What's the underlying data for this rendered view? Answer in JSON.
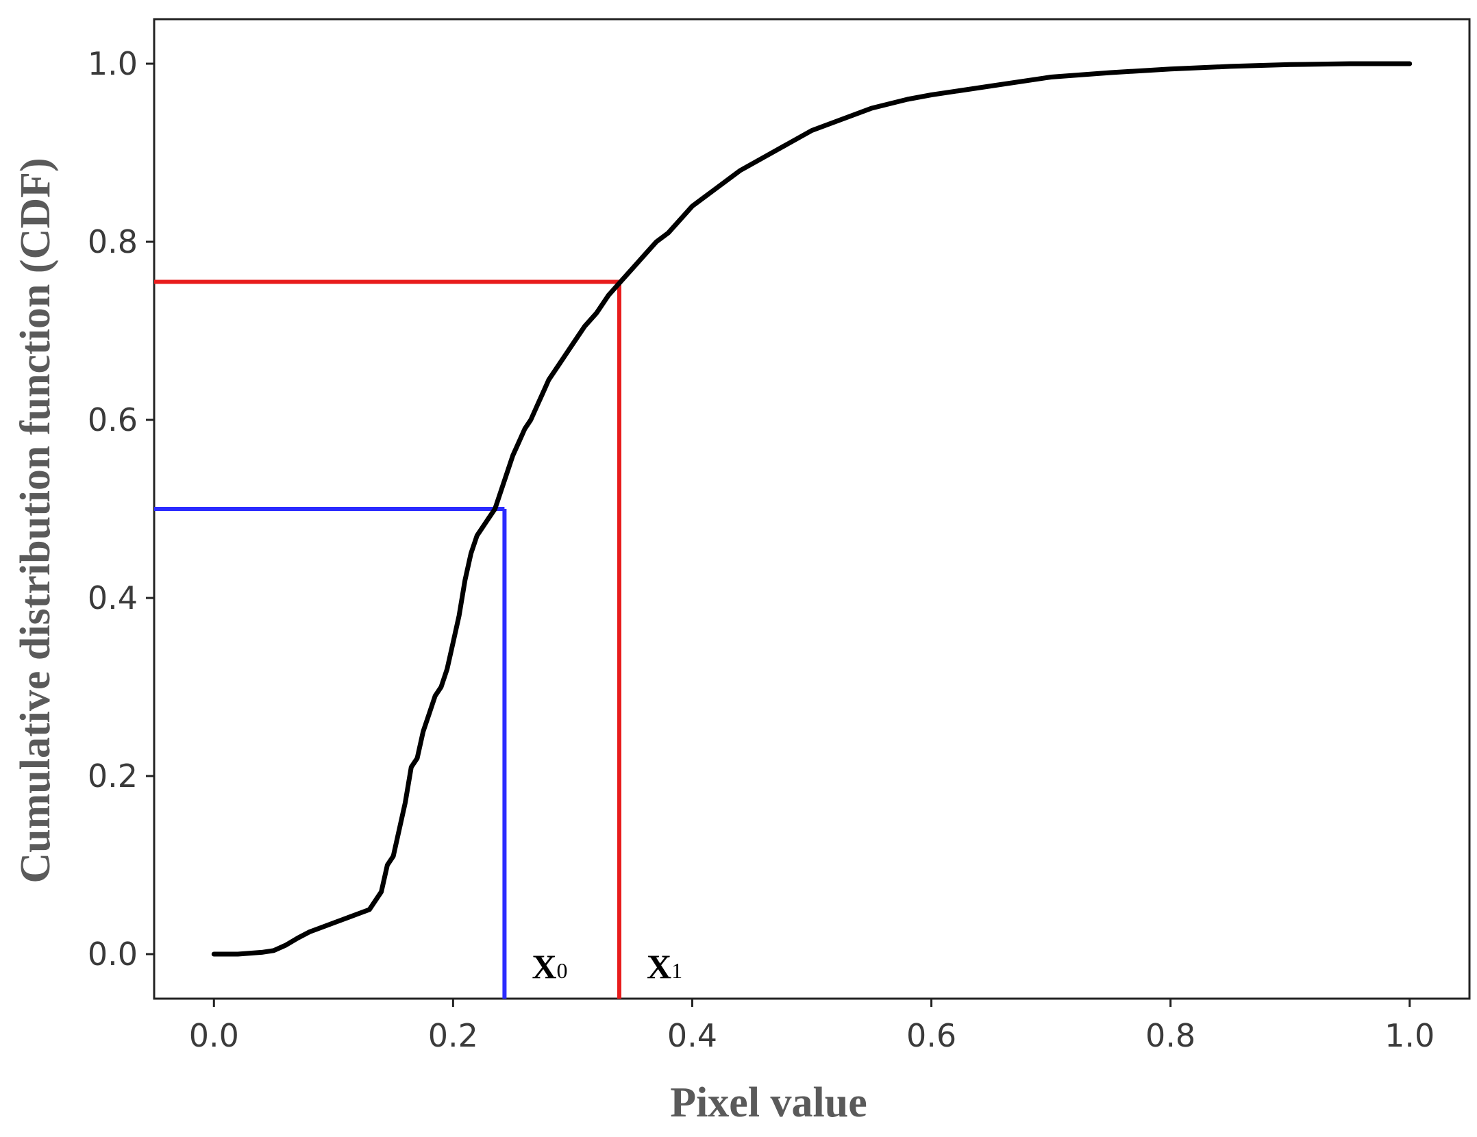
{
  "chart_data": {
    "type": "line",
    "title": "",
    "xlabel": "Pixel value",
    "ylabel": "Cumulative distribution function (CDF)",
    "xlim": [
      -0.05,
      1.05
    ],
    "ylim": [
      -0.05,
      1.05
    ],
    "x_ticks": [
      "0.0",
      "0.2",
      "0.4",
      "0.6",
      "0.8",
      "1.0"
    ],
    "y_ticks": [
      "0.0",
      "0.2",
      "0.4",
      "0.6",
      "0.8",
      "1.0"
    ],
    "grid": false,
    "series": [
      {
        "color": "#000000",
        "x": [
          0.0,
          0.02,
          0.04,
          0.05,
          0.06,
          0.07,
          0.08,
          0.09,
          0.1,
          0.11,
          0.12,
          0.13,
          0.135,
          0.14,
          0.145,
          0.15,
          0.155,
          0.16,
          0.165,
          0.17,
          0.175,
          0.18,
          0.185,
          0.19,
          0.195,
          0.2,
          0.205,
          0.21,
          0.215,
          0.22,
          0.225,
          0.23,
          0.235,
          0.24,
          0.245,
          0.25,
          0.255,
          0.26,
          0.265,
          0.27,
          0.275,
          0.28,
          0.29,
          0.3,
          0.31,
          0.32,
          0.33,
          0.34,
          0.35,
          0.36,
          0.37,
          0.38,
          0.39,
          0.4,
          0.42,
          0.44,
          0.46,
          0.48,
          0.5,
          0.52,
          0.55,
          0.58,
          0.6,
          0.65,
          0.7,
          0.75,
          0.8,
          0.85,
          0.9,
          0.95,
          1.0
        ],
        "y": [
          0.0,
          0.0,
          0.002,
          0.004,
          0.01,
          0.018,
          0.025,
          0.03,
          0.035,
          0.04,
          0.045,
          0.05,
          0.06,
          0.07,
          0.1,
          0.11,
          0.14,
          0.17,
          0.21,
          0.22,
          0.25,
          0.27,
          0.29,
          0.3,
          0.32,
          0.35,
          0.38,
          0.42,
          0.45,
          0.47,
          0.48,
          0.49,
          0.5,
          0.52,
          0.54,
          0.56,
          0.575,
          0.59,
          0.6,
          0.615,
          0.63,
          0.645,
          0.665,
          0.685,
          0.705,
          0.72,
          0.74,
          0.755,
          0.77,
          0.785,
          0.8,
          0.81,
          0.825,
          0.84,
          0.86,
          0.88,
          0.895,
          0.91,
          0.925,
          0.935,
          0.95,
          0.96,
          0.965,
          0.975,
          0.985,
          0.99,
          0.994,
          0.997,
          0.999,
          1.0,
          1.0
        ]
      }
    ],
    "reference_lines": [
      {
        "color": "#2b2bff",
        "x": 0.243,
        "y": 0.5,
        "label": "X",
        "subscript": "0"
      },
      {
        "color": "#e81c1c",
        "x": 0.339,
        "y": 0.755,
        "label": "X",
        "subscript": "1"
      }
    ]
  }
}
